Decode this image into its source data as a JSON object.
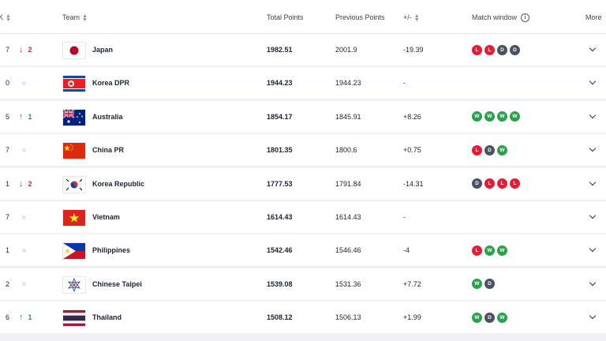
{
  "header": {
    "rank_label": "K",
    "team_label": "Team",
    "total_label": "Total Points",
    "prev_label": "Previous Points",
    "diff_label": "+/-",
    "match_window_label": "Match window",
    "more_label": "More"
  },
  "rows": [
    {
      "rank": "7",
      "change_dir": "down",
      "change": "2",
      "team": "Japan",
      "flag": "japan-flag",
      "total": "1982.51",
      "prev": "2001.9",
      "diff": "-19.39",
      "results": [
        "L",
        "L",
        "D",
        "D"
      ]
    },
    {
      "rank": "0",
      "change_dir": "none",
      "change": "",
      "team": "Korea DPR",
      "flag": "korea-dpr-flag",
      "total": "1944.23",
      "prev": "1944.23",
      "diff": "-",
      "results": []
    },
    {
      "rank": "5",
      "change_dir": "up",
      "change": "1",
      "team": "Australia",
      "flag": "australia-flag",
      "total": "1854.17",
      "prev": "1845.91",
      "diff": "+8.26",
      "results": [
        "W",
        "W",
        "W",
        "W"
      ]
    },
    {
      "rank": "7",
      "change_dir": "none",
      "change": "",
      "team": "China PR",
      "flag": "china-flag",
      "total": "1801.35",
      "prev": "1800.6",
      "diff": "+0.75",
      "results": [
        "L",
        "D",
        "W"
      ]
    },
    {
      "rank": "1",
      "change_dir": "down",
      "change": "2",
      "team": "Korea Republic",
      "flag": "korea-republic-flag",
      "total": "1777.53",
      "prev": "1791.84",
      "diff": "-14.31",
      "results": [
        "D",
        "L",
        "L",
        "L"
      ]
    },
    {
      "rank": "7",
      "change_dir": "none",
      "change": "",
      "team": "Vietnam",
      "flag": "vietnam-flag",
      "total": "1614.43",
      "prev": "1614.43",
      "diff": "-",
      "results": []
    },
    {
      "rank": "1",
      "change_dir": "none",
      "change": "",
      "team": "Philippines",
      "flag": "philippines-flag",
      "total": "1542.46",
      "prev": "1546.46",
      "diff": "-4",
      "results": [
        "L",
        "W",
        "W"
      ]
    },
    {
      "rank": "2",
      "change_dir": "none",
      "change": "",
      "team": "Chinese Taipei",
      "flag": "chinese-taipei-flag",
      "total": "1539.08",
      "prev": "1531.36",
      "diff": "+7.72",
      "results": [
        "W",
        "D"
      ]
    },
    {
      "rank": "6",
      "change_dir": "up",
      "change": "1",
      "team": "Thailand",
      "flag": "thailand-flag",
      "total": "1508.12",
      "prev": "1506.13",
      "diff": "+1.99",
      "results": [
        "W",
        "D",
        "W"
      ]
    }
  ],
  "icons": {
    "arrow_up": "↑",
    "arrow_down": "↓",
    "info": "i",
    "sort": "sort-icon",
    "expand": "chevron-down-icon"
  },
  "colors": {
    "loss": "#e01e37",
    "draw": "#4a5160",
    "win": "#2ba24a",
    "rank_up": "#1f9a3e",
    "rank_down": "#d9233b"
  }
}
